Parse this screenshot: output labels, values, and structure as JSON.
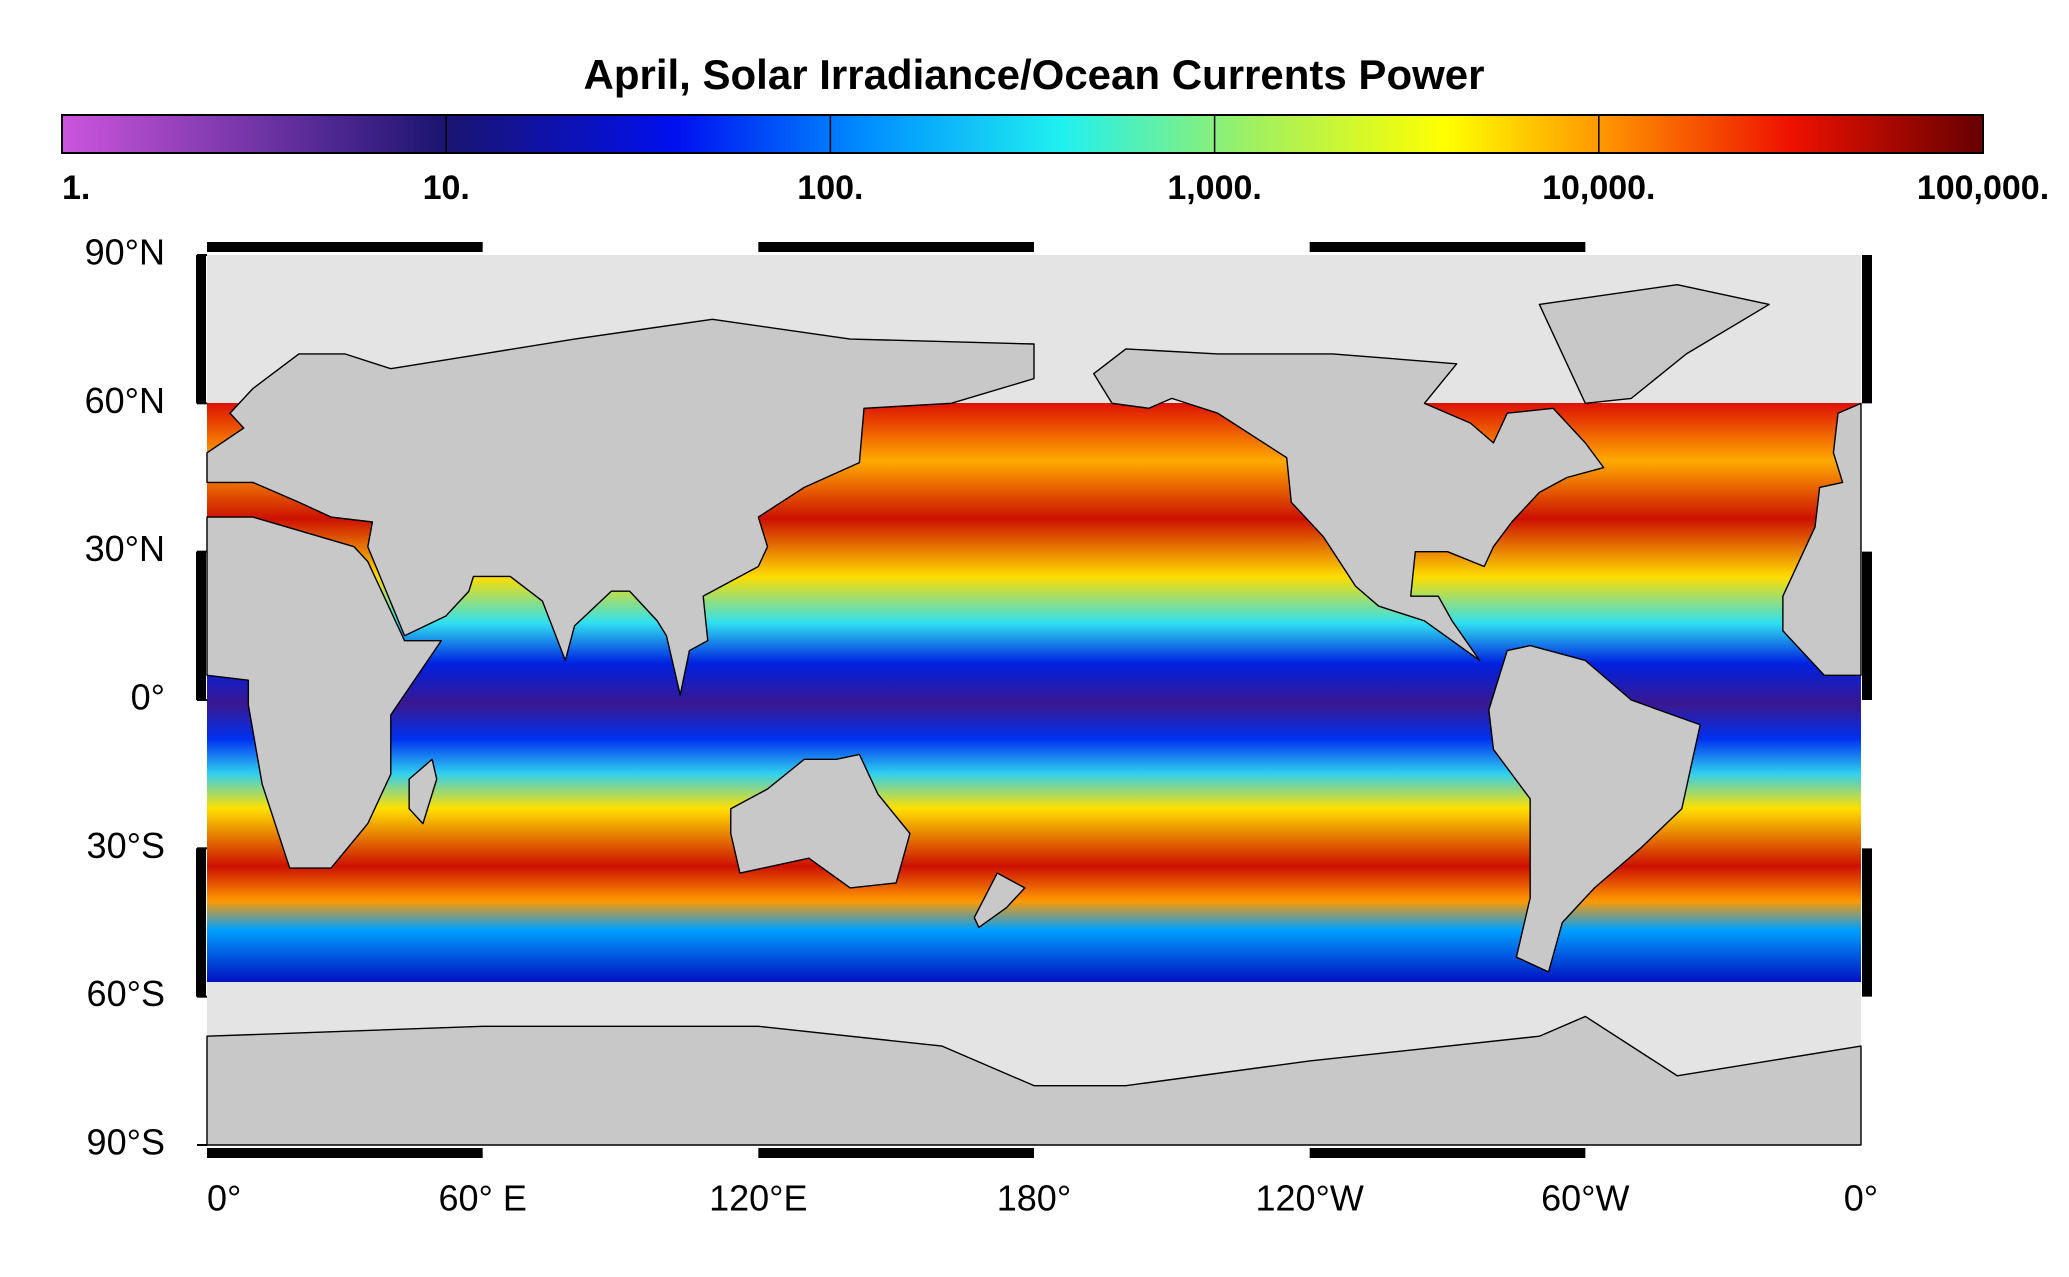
{
  "title": "April, Solar Irradiance/Ocean Currents Power",
  "colorbar": {
    "scale": "log",
    "lim": [
      1,
      100000
    ],
    "ticks": [
      {
        "value": 1,
        "label": "1."
      },
      {
        "value": 10,
        "label": "10."
      },
      {
        "value": 100,
        "label": "100."
      },
      {
        "value": 1000,
        "label": "1,000."
      },
      {
        "value": 10000,
        "label": "10,000."
      },
      {
        "value": 100000,
        "label": "100,000."
      }
    ]
  },
  "map": {
    "lat_ticks": [
      {
        "value": 90,
        "label": "90°N"
      },
      {
        "value": 60,
        "label": "60°N"
      },
      {
        "value": 30,
        "label": "30°N"
      },
      {
        "value": 0,
        "label": "0°"
      },
      {
        "value": -30,
        "label": "30°S"
      },
      {
        "value": -60,
        "label": "60°S"
      },
      {
        "value": -90,
        "label": "90°S"
      }
    ],
    "lon_ticks": [
      {
        "value": 0,
        "label": "0°"
      },
      {
        "value": 60,
        "label": "60° E"
      },
      {
        "value": 120,
        "label": "120°E"
      },
      {
        "value": 180,
        "label": "180°"
      },
      {
        "value": 240,
        "label": "120°W"
      },
      {
        "value": 300,
        "label": "60°W"
      },
      {
        "value": 360,
        "label": "0°"
      }
    ]
  }
}
